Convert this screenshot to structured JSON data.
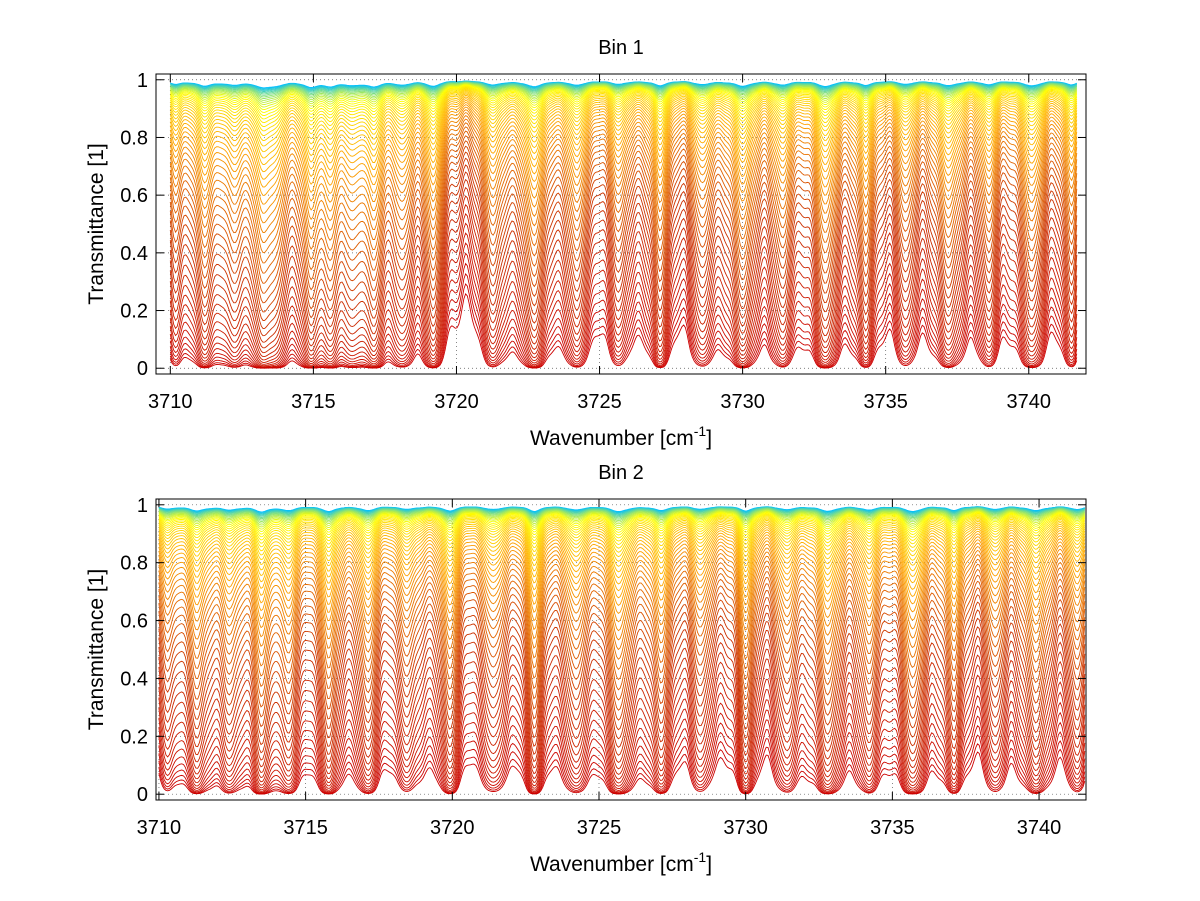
{
  "chart_data": [
    {
      "type": "line",
      "title": "Bin 1",
      "xlabel": "Wavenumber [cm",
      "xlabel_sup": "-1",
      "xlabel_end": "]",
      "ylabel": "Transmittance [1]",
      "xlim": [
        3709.5,
        3742
      ],
      "ylim": [
        -0.02,
        1.02
      ],
      "xticks": [
        3710,
        3715,
        3720,
        3725,
        3730,
        3735,
        3740
      ],
      "yticks": [
        0,
        0.2,
        0.4,
        0.6,
        0.8,
        1
      ],
      "ytick_labels": [
        "0",
        "0.2",
        "0.4",
        "0.6",
        "0.8",
        "1"
      ],
      "grid": true,
      "x_range": [
        3710,
        3741.7
      ],
      "line_dips": [
        3710.2,
        3711.2,
        3712.2,
        3713.2,
        3713.7,
        3714.9,
        3715.6,
        3716.4,
        3717.1,
        3718.1,
        3719.2,
        3721.3,
        3722.7,
        3724.2,
        3725.7,
        3727.1,
        3728.6,
        3730.0,
        3731.4,
        3732.9,
        3734.3,
        3735.7,
        3737.2,
        3738.6,
        3740.1,
        3741.5
      ],
      "curve_count": 60,
      "colormap": [
        "#00bfff",
        "#ffff00",
        "#ffa500",
        "#cc3300",
        "#cc0000"
      ]
    },
    {
      "type": "line",
      "title": "Bin 2",
      "xlabel": "Wavenumber [cm",
      "xlabel_sup": "-1",
      "xlabel_end": "]",
      "ylabel": "Transmittance [1]",
      "xlim": [
        3709.9,
        3741.6
      ],
      "ylim": [
        -0.02,
        1.02
      ],
      "xticks": [
        3710,
        3715,
        3720,
        3725,
        3730,
        3735,
        3740
      ],
      "yticks": [
        0,
        0.2,
        0.4,
        0.6,
        0.8,
        1
      ],
      "ytick_labels": [
        "0",
        "0.2",
        "0.4",
        "0.6",
        "0.8",
        "1"
      ],
      "grid": true,
      "x_range": [
        3710,
        3741.6
      ],
      "line_dips": [
        3710.3,
        3711.3,
        3712.4,
        3713.5,
        3714.4,
        3715.8,
        3717.1,
        3718.5,
        3719.9,
        3721.4,
        3722.8,
        3724.2,
        3725.7,
        3727.1,
        3728.5,
        3730.0,
        3731.4,
        3732.8,
        3734.2,
        3735.7,
        3737.1,
        3738.5,
        3739.9,
        3741.3
      ],
      "curve_count": 60,
      "colormap": [
        "#00bfff",
        "#ffff00",
        "#ffa500",
        "#cc3300",
        "#cc0000"
      ]
    }
  ]
}
